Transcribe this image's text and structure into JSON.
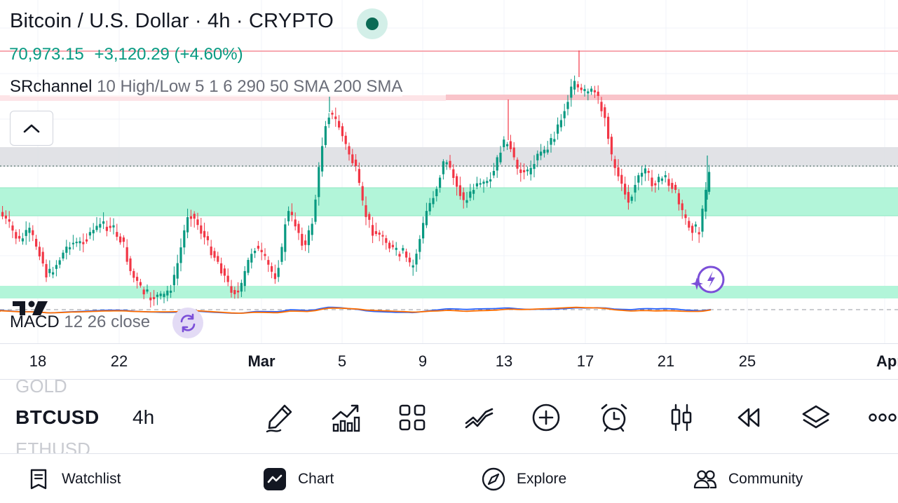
{
  "header": {
    "title": "Bitcoin / U.S. Dollar · 4h · CRYPTO",
    "price": "70,973.15",
    "change": "+3,120.29 (+4.60%)"
  },
  "indicator": {
    "name": "SRchannel",
    "params": "10 High/Low 5 1 6 290 50 SMA 200 SMA"
  },
  "macd": {
    "name": "MACD",
    "params": "12 26 close"
  },
  "colors": {
    "up": "#089981",
    "down": "#f23645",
    "zone_green": "#b2f5d9",
    "zone_grey": "#dcdde2",
    "resistance": "#f7a8b0",
    "macd_line": "#2962ff",
    "signal_line": "#ff6d00"
  },
  "icons": {
    "collapse": "chevron-up-icon",
    "status": "market-open-dot-icon",
    "refresh": "refresh-icon",
    "assistant": "ai-spark-icon"
  },
  "xaxis": {
    "labels": [
      "18",
      "22",
      "Mar",
      "5",
      "9",
      "13",
      "17",
      "21",
      "25",
      "Apr"
    ]
  },
  "chart_data": {
    "type": "candlestick",
    "symbol": "BTCUSD",
    "interval": "4h",
    "x_labels": [
      "18",
      "22",
      "Mar",
      "5",
      "9",
      "13",
      "17",
      "21",
      "25",
      "Apr"
    ],
    "last_price": 70973.15,
    "change": 3120.29,
    "change_pct": 4.6,
    "grid": true
  },
  "toolbar": {
    "symbol_prev": "GOLD",
    "symbol": "BTCUSD",
    "symbol_next": "ETHUSD",
    "timeframe": "4h",
    "tools": [
      "drawing-pen-icon",
      "indicators-icon",
      "layouts-grid-icon",
      "trend-lines-icon",
      "add-icon",
      "alert-clock-icon",
      "candle-type-icon",
      "replay-icon",
      "layers-icon",
      "more-icon"
    ]
  },
  "bottom_nav": {
    "watchlist": "Watchlist",
    "chart": "Chart",
    "explore": "Explore",
    "community": "Community"
  }
}
